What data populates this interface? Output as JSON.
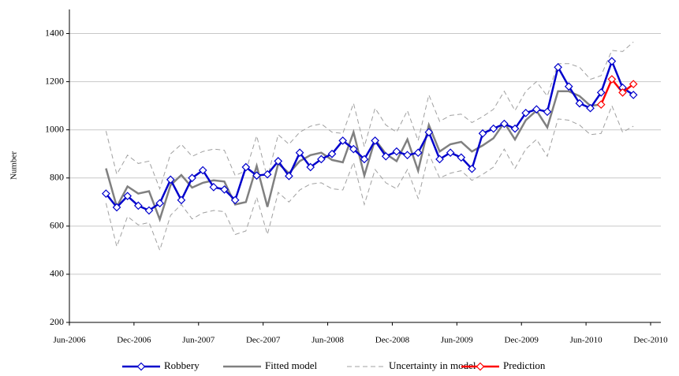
{
  "chart_data": {
    "type": "line",
    "ylabel": "Number",
    "x": [
      "2006-09",
      "2006-10",
      "2006-11",
      "2006-12",
      "2007-01",
      "2007-02",
      "2007-03",
      "2007-04",
      "2007-05",
      "2007-06",
      "2007-07",
      "2007-08",
      "2007-09",
      "2007-10",
      "2007-11",
      "2007-12",
      "2008-01",
      "2008-02",
      "2008-03",
      "2008-04",
      "2008-05",
      "2008-06",
      "2008-07",
      "2008-08",
      "2008-09",
      "2008-10",
      "2008-11",
      "2008-12",
      "2009-01",
      "2009-02",
      "2009-03",
      "2009-04",
      "2009-05",
      "2009-06",
      "2009-07",
      "2009-08",
      "2009-09",
      "2009-10",
      "2009-11",
      "2009-12",
      "2010-01",
      "2010-02",
      "2010-03",
      "2010-04",
      "2010-05",
      "2010-06",
      "2010-07",
      "2010-08",
      "2010-09",
      "2010-10"
    ],
    "xlim": [
      "2006-06",
      "2010-12"
    ],
    "xticks": [
      {
        "value": "2006-06",
        "label": "Jun-2006"
      },
      {
        "value": "2006-12",
        "label": "Dec-2006"
      },
      {
        "value": "2007-06",
        "label": "Jun-2007"
      },
      {
        "value": "2007-12",
        "label": "Dec-2007"
      },
      {
        "value": "2008-06",
        "label": "Jun-2008"
      },
      {
        "value": "2008-12",
        "label": "Dec-2008"
      },
      {
        "value": "2009-06",
        "label": "Jun-2009"
      },
      {
        "value": "2009-12",
        "label": "Dec-2009"
      },
      {
        "value": "2010-06",
        "label": "Jun-2010"
      },
      {
        "value": "2010-12",
        "label": "Dec-2010"
      }
    ],
    "ylim": [
      200,
      1500
    ],
    "yticks": [
      200,
      400,
      600,
      800,
      1000,
      1200,
      1400
    ],
    "grid": true,
    "legend": "bottom",
    "series": [
      {
        "name": "Robbery",
        "color": "#0000cc",
        "style": "solid",
        "markers": true,
        "values": [
          735,
          678,
          725,
          685,
          665,
          695,
          793,
          708,
          800,
          832,
          762,
          752,
          708,
          845,
          810,
          815,
          870,
          808,
          905,
          845,
          878,
          900,
          955,
          920,
          878,
          955,
          890,
          910,
          895,
          905,
          990,
          878,
          905,
          885,
          838,
          985,
          1005,
          1025,
          1005,
          1070,
          1085,
          1075,
          1260,
          1180,
          1110,
          1090,
          1155,
          1285,
          1175,
          1145
        ]
      },
      {
        "name": "Fitted model",
        "color": "#808080",
        "style": "solid",
        "markers": false,
        "values": [
          840,
          680,
          765,
          735,
          745,
          628,
          770,
          812,
          760,
          780,
          790,
          785,
          690,
          700,
          850,
          680,
          860,
          820,
          870,
          895,
          905,
          875,
          865,
          990,
          810,
          960,
          900,
          870,
          960,
          830,
          1020,
          910,
          940,
          950,
          910,
          935,
          965,
          1030,
          960,
          1040,
          1080,
          1010,
          1160,
          1160,
          1140,
          1100,
          1105,
          null,
          null,
          null
        ]
      },
      {
        "name": "Uncertainty in model",
        "color": "#a0a0a0",
        "style": "dashed",
        "markers": false,
        "values": [
          995,
          815,
          895,
          860,
          870,
          755,
          900,
          940,
          890,
          910,
          920,
          915,
          810,
          830,
          975,
          800,
          980,
          940,
          990,
          1015,
          1025,
          990,
          985,
          1110,
          930,
          1090,
          1020,
          990,
          1080,
          955,
          1145,
          1035,
          1060,
          1065,
          1030,
          1055,
          1085,
          1160,
          1080,
          1160,
          1200,
          1140,
          1275,
          1275,
          1260,
          1210,
          1225,
          1330,
          1325,
          1365
        ],
        "lower": [
          695,
          515,
          640,
          605,
          615,
          500,
          645,
          690,
          630,
          655,
          665,
          660,
          565,
          580,
          720,
          565,
          740,
          700,
          750,
          775,
          780,
          755,
          750,
          865,
          690,
          835,
          780,
          755,
          835,
          715,
          900,
          800,
          820,
          830,
          790,
          815,
          845,
          920,
          840,
          920,
          960,
          890,
          1045,
          1040,
          1020,
          980,
          985,
          1100,
          990,
          1015
        ]
      },
      {
        "name": "Prediction",
        "color": "#ff0000",
        "style": "solid",
        "markers": true,
        "values": [
          null,
          null,
          null,
          null,
          null,
          null,
          null,
          null,
          null,
          null,
          null,
          null,
          null,
          null,
          null,
          null,
          null,
          null,
          null,
          null,
          null,
          null,
          null,
          null,
          null,
          null,
          null,
          null,
          null,
          null,
          null,
          null,
          null,
          null,
          null,
          null,
          null,
          null,
          null,
          null,
          null,
          null,
          null,
          null,
          null,
          null,
          1105,
          1210,
          1155,
          1190
        ]
      }
    ]
  }
}
